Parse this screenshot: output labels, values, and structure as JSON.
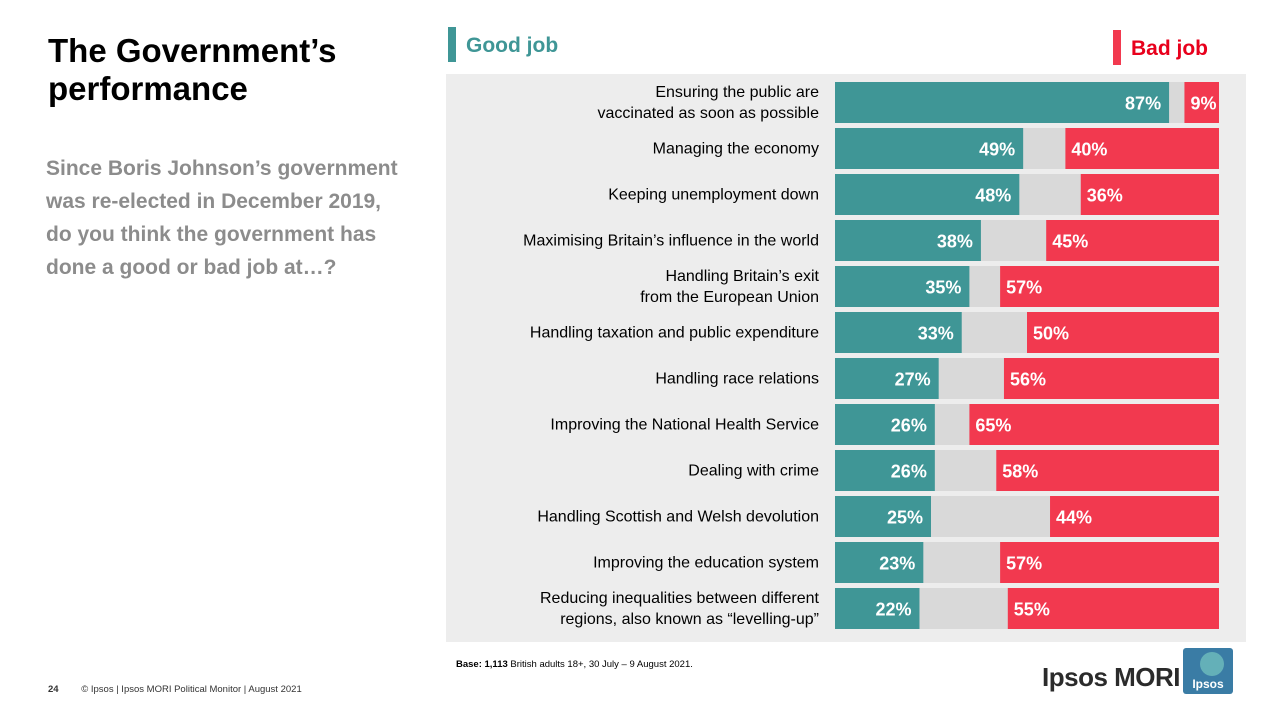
{
  "slide": {
    "title": "The Government’s\nperformance",
    "question": "Since Boris Johnson’s government was re-elected in December 2019, do you think the government has done a good or bad job at…?",
    "base_bold": "Base: 1,113",
    "base_rest": " British adults 18+, 30 July – 9 August 2021.",
    "page_number": "24",
    "footer": "© Ipsos | Ipsos MORI Political Monitor | August 2021",
    "logo_text": "Ipsos MORI",
    "logo_box_text": "Ipsos"
  },
  "colors": {
    "good": "#3f9696",
    "bad": "#f2394f",
    "neither": "#d9d9d9",
    "panel": "#ededed"
  },
  "chart_data": {
    "type": "bar",
    "orientation": "horizontal",
    "stacked": true,
    "unit": "%",
    "legend": {
      "good_label": "Good job",
      "bad_label": "Bad job",
      "placement": "top"
    },
    "categories": [
      [
        "Ensuring the public are",
        "vaccinated as soon as possible"
      ],
      [
        "Managing the economy"
      ],
      [
        "Keeping unemployment down"
      ],
      [
        "Maximising Britain’s influence in the world"
      ],
      [
        "Handling Britain’s exit",
        "from the European Union"
      ],
      [
        "Handling taxation and public expenditure"
      ],
      [
        "Handling race relations"
      ],
      [
        "Improving the National Health Service"
      ],
      [
        "Dealing with crime"
      ],
      [
        "Handling Scottish and Welsh devolution"
      ],
      [
        "Improving the education system"
      ],
      [
        "Reducing inequalities between different",
        "regions, also known as “levelling-up”"
      ]
    ],
    "series": [
      {
        "name": "Good job",
        "values": [
          87,
          49,
          48,
          38,
          35,
          33,
          27,
          26,
          26,
          25,
          23,
          22
        ]
      },
      {
        "name": "Bad job",
        "values": [
          9,
          40,
          36,
          45,
          57,
          50,
          56,
          65,
          58,
          44,
          57,
          55
        ]
      }
    ],
    "xlim": [
      0,
      100
    ]
  }
}
